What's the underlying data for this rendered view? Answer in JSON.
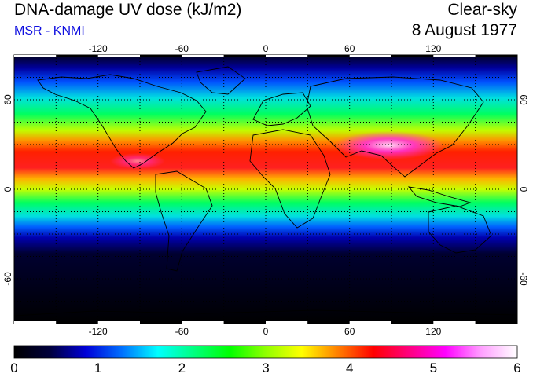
{
  "header": {
    "title": "DNA-damage UV dose (kJ/m2)",
    "credit": "MSR - KNMI",
    "condition": "Clear-sky",
    "date": "8 August 1977"
  },
  "colors": {
    "credit": "#1010e0"
  },
  "map": {
    "lon_range": [
      -180,
      180
    ],
    "lat_range": [
      -90,
      90
    ],
    "lon_ticks": [
      "-120",
      "-60",
      "0",
      "60",
      "120"
    ],
    "lat_ticks": [
      "60",
      "0",
      "-60"
    ],
    "grid_spacing_deg": 30
  },
  "colorbar": {
    "labels": [
      "0",
      "1",
      "2",
      "3",
      "4",
      "5",
      "6"
    ],
    "colors": [
      "#000000",
      "#00003c",
      "#0000d8",
      "#0070ff",
      "#00ffff",
      "#00ff80",
      "#00ff00",
      "#90ff00",
      "#ffff00",
      "#ff8000",
      "#ff0000",
      "#ff0080",
      "#ff00ff",
      "#ffa0ff",
      "#ffffff"
    ]
  }
}
